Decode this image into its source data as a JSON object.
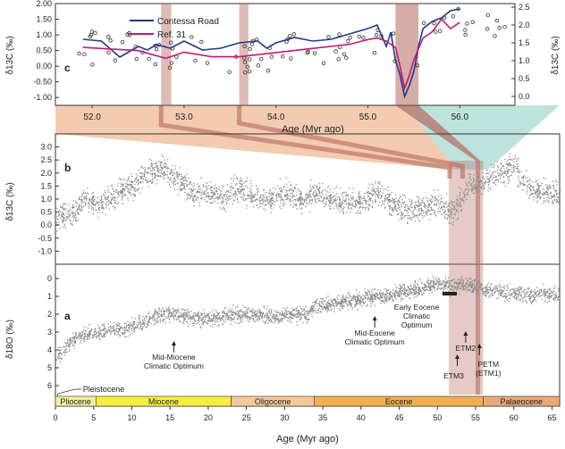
{
  "colors": {
    "contessa": "#1d3a8a",
    "ref31": "#c2187a",
    "scatter": "#8a8a8a",
    "highlight": "#b5685f",
    "band_orange": "#e8a070",
    "band_teal": "#7ec8bc",
    "pliocene": "#f4f0a0",
    "miocene": "#f7ee40",
    "oligocene": "#f4c89a",
    "eocene": "#f0b050",
    "paleocene": "#e8a878"
  },
  "chart_data": [
    {
      "id": "c",
      "type": "line",
      "panel_label": "c",
      "xlabel": "Age (Myr ago)",
      "ylabel_left": "δ13C (‰)",
      "ylabel_right": "δ13C (‰)",
      "xlim": [
        51.6,
        56.6
      ],
      "x_ticks": [
        "52.0",
        "53.0",
        "54.0",
        "55.0",
        "56.0"
      ],
      "ylim_left": [
        -1.25,
        2.0
      ],
      "y_ticks_left": [
        "2.00",
        "1.50",
        "1.00",
        "0.50",
        "0.00",
        "-0.50",
        "-1.00"
      ],
      "ylim_right": [
        -0.25,
        2.6
      ],
      "y_ticks_right": [
        "2.5",
        "2.0",
        "1.5",
        "1.0",
        "0.5",
        "0.0"
      ],
      "legend": [
        "Contessa Road",
        "Ref. 31"
      ],
      "series": [
        {
          "name": "Contessa Road",
          "axis": "right",
          "x": [
            51.9,
            52.1,
            52.3,
            52.5,
            52.6,
            52.7,
            52.85,
            53.0,
            53.2,
            53.4,
            53.6,
            53.8,
            53.9,
            54.0,
            54.2,
            54.4,
            54.6,
            54.8,
            55.0,
            55.1,
            55.2,
            55.25,
            55.3,
            55.35,
            55.4,
            55.45,
            55.5,
            55.55,
            55.6,
            55.7,
            55.8,
            55.9,
            56.0
          ],
          "y": [
            1.6,
            1.55,
            1.1,
            1.4,
            1.3,
            1.45,
            1.35,
            1.55,
            1.3,
            1.35,
            1.5,
            1.55,
            1.35,
            1.5,
            1.65,
            1.55,
            1.6,
            1.75,
            1.9,
            2.0,
            1.4,
            1.8,
            1.0,
            0.6,
            0.0,
            0.3,
            0.7,
            1.4,
            1.9,
            2.1,
            2.2,
            2.4,
            2.45
          ]
        },
        {
          "name": "Ref. 31",
          "axis": "left",
          "x": [
            51.9,
            52.2,
            52.5,
            52.8,
            53.0,
            53.3,
            53.6,
            53.9,
            54.2,
            54.5,
            54.8,
            55.0,
            55.1,
            55.2,
            55.3,
            55.35,
            55.4,
            55.45,
            55.5,
            55.6,
            55.7,
            55.8,
            55.9,
            56.0
          ],
          "y": [
            0.6,
            0.55,
            0.5,
            0.25,
            0.45,
            0.3,
            0.3,
            0.4,
            0.5,
            0.6,
            0.7,
            0.85,
            0.9,
            0.8,
            0.6,
            0.0,
            -0.7,
            -0.3,
            0.2,
            0.9,
            1.1,
            1.5,
            1.2,
            1.4
          ]
        }
      ]
    },
    {
      "id": "b",
      "type": "scatter",
      "panel_label": "b",
      "xlim": [
        0,
        66
      ],
      "ylabel": "δ13C (‰)",
      "ylim": [
        -1.5,
        3.5
      ],
      "y_ticks": [
        "3.0",
        "2.5",
        "2.0",
        "1.5",
        "1.0",
        "0.5",
        "0.0",
        "-0.5",
        "-1.0"
      ],
      "trend": {
        "x": [
          0,
          2,
          4,
          6,
          8,
          10,
          12,
          14,
          16,
          18,
          20,
          22,
          24,
          26,
          28,
          30,
          32,
          34,
          36,
          38,
          40,
          42,
          44,
          46,
          48,
          50,
          52,
          54,
          56,
          58,
          60,
          62,
          64,
          66
        ],
        "y": [
          0.3,
          0.4,
          1.0,
          0.8,
          1.2,
          1.5,
          2.0,
          2.2,
          1.8,
          1.2,
          1.3,
          1.1,
          1.5,
          1.0,
          1.0,
          1.3,
          1.0,
          1.2,
          1.0,
          0.9,
          0.9,
          1.3,
          0.8,
          0.6,
          0.7,
          0.8,
          0.5,
          1.5,
          1.7,
          2.0,
          2.3,
          1.4,
          1.3,
          1.1
        ]
      }
    },
    {
      "id": "a",
      "type": "scatter",
      "panel_label": "a",
      "xlabel": "Age (Myr ago)",
      "xlim": [
        0,
        66
      ],
      "x_ticks": [
        "0",
        "5",
        "10",
        "15",
        "20",
        "25",
        "30",
        "35",
        "40",
        "45",
        "50",
        "55",
        "60",
        "65"
      ],
      "ylabel": "δ18O (‰)",
      "ylim": [
        -0.8,
        6.5
      ],
      "y_ticks": [
        "0",
        "1",
        "2",
        "3",
        "4",
        "5",
        "6"
      ],
      "trend": {
        "x": [
          0,
          1,
          2,
          3,
          4,
          5,
          7,
          9,
          11,
          13,
          15,
          17,
          19,
          21,
          23,
          25,
          27,
          29,
          31,
          33,
          34,
          36,
          38,
          40,
          42,
          44,
          46,
          48,
          50,
          52,
          54,
          56,
          58,
          60,
          62,
          64,
          66
        ],
        "y": [
          4.4,
          4.0,
          3.6,
          3.2,
          3.1,
          3.0,
          2.9,
          2.8,
          2.5,
          2.1,
          1.9,
          2.1,
          2.2,
          2.2,
          2.0,
          2.0,
          2.0,
          2.1,
          2.0,
          2.0,
          1.5,
          1.4,
          1.3,
          1.1,
          1.0,
          0.9,
          0.7,
          0.5,
          0.3,
          0.4,
          0.3,
          0.6,
          0.7,
          0.8,
          0.9,
          0.8,
          0.9
        ]
      },
      "annotations": [
        {
          "text": [
            "Mid-Miocene",
            "Climatic Optimum"
          ],
          "x": 15.5
        },
        {
          "text": [
            "Mid-Eocene",
            "Climatic Optimum"
          ],
          "x": 41.8
        },
        {
          "text": [
            "Early Eocene",
            "Climatic",
            "Optimum"
          ],
          "x": 51.5
        },
        {
          "text": [
            "ETM2"
          ],
          "x": 53.7
        },
        {
          "text": [
            "ETM3"
          ],
          "x": 52.6
        },
        {
          "text": [
            "PETM",
            "(ETM1)"
          ],
          "x": 55.5
        }
      ],
      "epochs": [
        {
          "name": "Pleistocene",
          "start": 0,
          "end": 2.6
        },
        {
          "name": "Pliocene",
          "start": 0,
          "end": 5.3,
          "color_key": "pliocene"
        },
        {
          "name": "Miocene",
          "start": 5.3,
          "end": 23.0,
          "color_key": "miocene"
        },
        {
          "name": "Oligocene",
          "start": 23.0,
          "end": 33.9,
          "color_key": "oligocene"
        },
        {
          "name": "Eocene",
          "start": 33.9,
          "end": 56.0,
          "color_key": "eocene"
        },
        {
          "name": "Palaeocene",
          "start": 56.0,
          "end": 66.0,
          "color_key": "paleocene"
        }
      ]
    }
  ]
}
